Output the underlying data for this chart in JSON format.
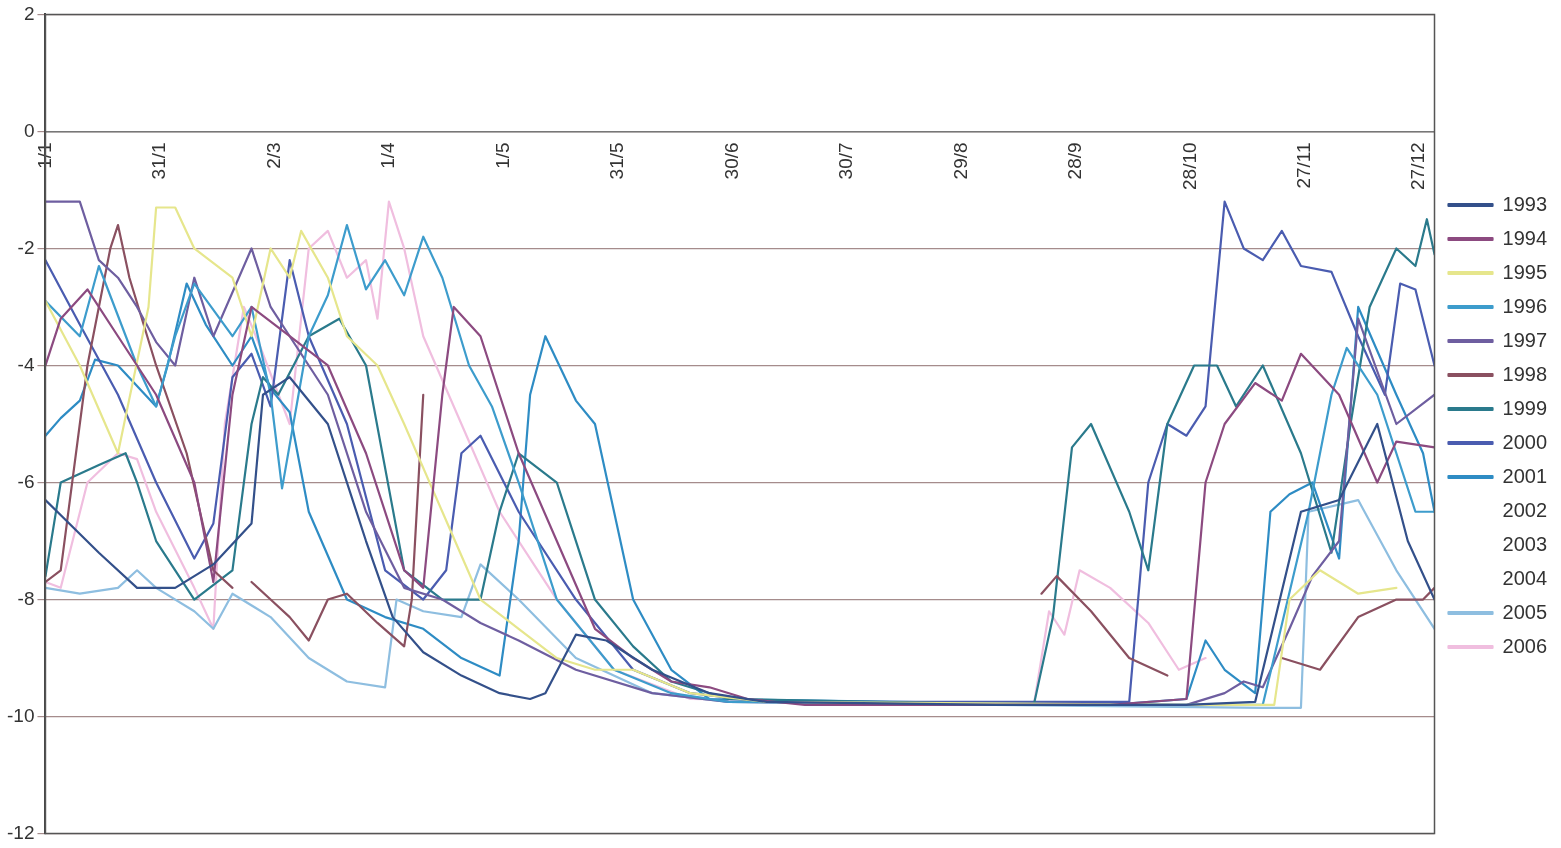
{
  "chart_data": {
    "type": "line",
    "xlim": [
      "--01-01",
      "--12-31"
    ],
    "ylim": [
      -12,
      2
    ],
    "xticks": [
      {
        "value": "--01-01",
        "label": "1/1"
      },
      {
        "value": "--01-31",
        "label": "31/1"
      },
      {
        "value": "--03-02",
        "label": "2/3"
      },
      {
        "value": "--04-01",
        "label": "1/4"
      },
      {
        "value": "--05-01",
        "label": "1/5"
      },
      {
        "value": "--05-31",
        "label": "31/5"
      },
      {
        "value": "--06-30",
        "label": "30/6"
      },
      {
        "value": "--07-30",
        "label": "30/7"
      },
      {
        "value": "--08-29",
        "label": "29/8"
      },
      {
        "value": "--09-28",
        "label": "28/9"
      },
      {
        "value": "--10-28",
        "label": "28/10"
      },
      {
        "value": "--11-27",
        "label": "27/11"
      },
      {
        "value": "--12-27",
        "label": "27/12"
      }
    ],
    "yticks": [
      -12,
      -10,
      -8,
      -6,
      -4,
      -2,
      0,
      2
    ],
    "grid": "y",
    "legend": "right",
    "marker": "none",
    "line_style": "solid",
    "series": [
      {
        "name": "1993",
        "color": "#33508a",
        "x": [
          "--01-01",
          "--01-15",
          "--01-25",
          "--02-04",
          "--02-14",
          "--02-24",
          "--02-27",
          "--03-06",
          "--03-16",
          "--03-26",
          "--04-02",
          "--04-10",
          "--04-20",
          "--04-30",
          "--05-08",
          "--05-12",
          "--05-20",
          "--05-28",
          "--06-09",
          "--06-24",
          "--07-09",
          "--09-07",
          "--10-27",
          "--11-14",
          "--11-26",
          "--12-06",
          "--12-16",
          "--12-24",
          "--12-31"
        ],
        "values": [
          -6.3,
          -7.2,
          -7.8,
          -7.8,
          -7.4,
          -6.7,
          -4.5,
          -4.2,
          -5,
          -7,
          -8.3,
          -8.9,
          -9.3,
          -9.6,
          -9.7,
          -9.6,
          -8.6,
          -8.7,
          -9.2,
          -9.6,
          -9.75,
          -9.8,
          -9.8,
          -9.75,
          -6.5,
          -6.3,
          -5,
          -7,
          -8
        ]
      },
      {
        "name": "1994",
        "color": "#8c4a80",
        "x": [
          "--01-01",
          "--01-05",
          "--01-12",
          "--01-20",
          "--01-30",
          "--02-09",
          "--02-14",
          "--02-19",
          "--02-24",
          "--03-06",
          "--03-16",
          "--03-26",
          "--04-05",
          "--04-10",
          "--04-15",
          "--04-18",
          "--04-25",
          "--05-05",
          "--05-15",
          "--05-25",
          "--06-04",
          "--06-14",
          "--06-24",
          "--07-04",
          "--07-19",
          "--10-07",
          "--10-27",
          "--11-01",
          "--11-06",
          "--11-14",
          "--11-21",
          "--11-26",
          "--12-06",
          "--12-16",
          "--12-21",
          "--12-31"
        ],
        "values": [
          -4,
          -3.2,
          -2.7,
          -3.5,
          -4.5,
          -6,
          -7.7,
          -4.5,
          -3,
          -3.5,
          -4,
          -5.5,
          -7.5,
          -7.8,
          -4.5,
          -3,
          -3.5,
          -5.5,
          -7,
          -8.5,
          -9,
          -9.4,
          -9.5,
          -9.7,
          -9.8,
          -9.8,
          -9.7,
          -6,
          -5,
          -4.3,
          -4.6,
          -3.8,
          -4.5,
          -6,
          -5.3,
          -5.4
        ]
      },
      {
        "name": "1995",
        "color": "#e6e68c",
        "x": [
          "--01-01",
          "--01-10",
          "--01-20",
          "--01-28",
          "--01-30",
          "--02-04",
          "--02-09",
          "--02-19",
          "--02-24",
          "--03-01",
          "--03-06",
          "--03-09",
          "--03-16",
          "--03-21",
          "--03-29",
          "--04-05",
          "--04-15",
          "--04-25",
          "--05-05",
          "--05-15",
          "--05-25",
          "--06-04",
          "--06-19",
          "--07-09",
          "--10-27",
          "--11-19",
          "--11-23",
          "--12-01",
          "--12-11",
          "--12-21"
        ],
        "values": [
          -2.9,
          -4,
          -5.5,
          -3,
          -1.3,
          -1.3,
          -2,
          -2.5,
          -3.5,
          -2,
          -2.5,
          -1.7,
          -2.5,
          -3.5,
          -4,
          -5,
          -6.5,
          -8,
          -8.5,
          -9,
          -9.2,
          -9.2,
          -9.6,
          -9.75,
          -9.8,
          -9.8,
          -8,
          -7.5,
          -7.9,
          -7.8
        ]
      },
      {
        "name": "1996",
        "color": "#3d9ccc",
        "x": [
          "--01-01",
          "--01-10",
          "--01-15",
          "--01-25",
          "--01-30",
          "--02-04",
          "--02-09",
          "--02-19",
          "--02-24",
          "--03-01",
          "--03-04",
          "--03-11",
          "--03-16",
          "--03-21",
          "--03-26",
          "--03-31",
          "--04-05",
          "--04-10",
          "--04-15",
          "--04-22",
          "--04-28",
          "--05-05",
          "--05-15",
          "--05-30",
          "--06-14",
          "--06-29",
          "--10-27",
          "--11-16",
          "--11-28",
          "--12-04",
          "--12-08",
          "--12-16",
          "--12-26",
          "--12-31"
        ],
        "values": [
          -2.9,
          -3.5,
          -2.3,
          -4,
          -4.7,
          -3.5,
          -2.6,
          -3.5,
          -3,
          -4.5,
          -6.1,
          -3.5,
          -2.8,
          -1.6,
          -2.7,
          -2.2,
          -2.8,
          -1.8,
          -2.5,
          -4,
          -4.7,
          -6,
          -8,
          -9.2,
          -9.6,
          -9.75,
          -9.8,
          -9.8,
          -6.5,
          -4.5,
          -3.7,
          -4.5,
          -6.5,
          -6.5
        ]
      },
      {
        "name": "1997",
        "color": "#6e5ea0",
        "x": [
          "--01-01",
          "--01-10",
          "--01-15",
          "--01-20",
          "--01-25",
          "--01-30",
          "--02-04",
          "--02-09",
          "--02-14",
          "--02-24",
          "--03-01",
          "--03-06",
          "--03-16",
          "--03-26",
          "--04-05",
          "--04-15",
          "--04-25",
          "--05-05",
          "--05-20",
          "--06-09",
          "--06-29",
          "--10-27",
          "--11-06",
          "--11-11",
          "--11-16",
          "--11-23",
          "--11-29",
          "--12-06",
          "--12-11",
          "--12-21",
          "--12-31"
        ],
        "values": [
          -1.2,
          -1.2,
          -2.2,
          -2.5,
          -3,
          -3.6,
          -4,
          -2.5,
          -3.5,
          -2,
          -3,
          -3.5,
          -4.5,
          -6.5,
          -7.8,
          -8,
          -8.4,
          -8.7,
          -9.2,
          -9.6,
          -9.75,
          -9.8,
          -9.6,
          -9.4,
          -9.5,
          -8.5,
          -7.6,
          -7,
          -3.2,
          -5,
          -4.5
        ]
      },
      {
        "name": "1998",
        "color": "#8a5060",
        "x": [
          "--01-01",
          "--01-05",
          "--01-12",
          "--01-18",
          "--01-20",
          "--01-23",
          "--01-30",
          "--02-07",
          "--02-14",
          "--02-19",
          "--02-21",
          "--02-24",
          "--03-01",
          "--03-06",
          "--03-11",
          "--03-16",
          "--03-21",
          "--03-29",
          "--04-05",
          "--04-07",
          "--04-10",
          "--04-13",
          "--09-19",
          "--09-23",
          "--10-02",
          "--10-12",
          "--10-22",
          "--10-27",
          "--11-21",
          "--12-01",
          "--12-11",
          "--12-21",
          "--12-28",
          "--12-31"
        ],
        "values": [
          -7.7,
          -7.5,
          -4,
          -2,
          -1.6,
          -2.5,
          -4,
          -5.5,
          -7.5,
          -7.8,
          null,
          -7.7,
          -8,
          -8.3,
          -8.7,
          -8,
          -7.9,
          -8.4,
          -8.8,
          -8,
          -4.5,
          null,
          -7.9,
          -7.6,
          -8.2,
          -9,
          -9.3,
          null,
          -9,
          -9.2,
          -8.3,
          -8,
          -8,
          -7.8
        ]
      },
      {
        "name": "1999",
        "color": "#2a7a8c",
        "x": [
          "--01-01",
          "--01-05",
          "--01-15",
          "--01-22",
          "--01-25",
          "--01-30",
          "--02-09",
          "--02-19",
          "--02-24",
          "--02-27",
          "--03-03",
          "--03-11",
          "--03-19",
          "--03-26",
          "--04-05",
          "--04-15",
          "--04-25",
          "--04-30",
          "--05-05",
          "--05-15",
          "--05-25",
          "--06-04",
          "--06-14",
          "--06-29",
          "--09-17",
          "--09-22",
          "--09-27",
          "--10-02",
          "--10-12",
          "--10-17",
          "--10-22",
          "--10-29",
          "--11-04",
          "--11-09",
          "--11-16",
          "--11-26",
          "--12-04",
          "--12-09",
          "--12-14",
          "--12-21",
          "--12-26",
          "--12-29",
          "--12-31"
        ],
        "values": [
          -7.6,
          -6,
          -5.7,
          -5.5,
          -6,
          -7,
          -8,
          -7.5,
          -5,
          -4.2,
          -4.5,
          -3.5,
          -3.2,
          -4,
          -7.5,
          -8,
          -8,
          -6.5,
          -5.5,
          -6,
          -8,
          -8.8,
          -9.4,
          -9.7,
          -9.8,
          -8.3,
          -5.4,
          -5,
          -6.5,
          -7.5,
          -5,
          -4,
          -4,
          -4.7,
          -4,
          -5.5,
          -7.2,
          -5,
          -3,
          -2,
          -2.3,
          -1.5,
          -2.1
        ]
      },
      {
        "name": "2000",
        "color": "#4a5cb0",
        "x": [
          "--01-01",
          "--01-10",
          "--01-20",
          "--01-30",
          "--02-09",
          "--02-14",
          "--02-19",
          "--02-24",
          "--03-01",
          "--03-06",
          "--03-11",
          "--03-21",
          "--03-31",
          "--04-10",
          "--04-16",
          "--04-20",
          "--04-25",
          "--05-05",
          "--05-20",
          "--06-04",
          "--06-19",
          "--07-09",
          "--10-12",
          "--10-17",
          "--10-22",
          "--10-27",
          "--11-01",
          "--11-06",
          "--11-11",
          "--11-16",
          "--11-21",
          "--11-26",
          "--12-04",
          "--12-11",
          "--12-18",
          "--12-22",
          "--12-26",
          "--12-31"
        ],
        "values": [
          -2.2,
          -3.3,
          -4.5,
          -6,
          -7.3,
          -6.7,
          -4.2,
          -3.8,
          -4.7,
          -2.2,
          -3.5,
          -5,
          -7.5,
          -8,
          -7.5,
          -5.5,
          -5.2,
          -6.5,
          -8,
          -9.2,
          -9.6,
          -9.75,
          -9.75,
          -6,
          -5,
          -5.2,
          -4.7,
          -1.2,
          -2,
          -2.2,
          -1.7,
          -2.3,
          -2.4,
          -3.5,
          -4.5,
          -2.6,
          -2.7,
          -4
        ]
      },
      {
        "name": "2001",
        "color": "#2e8cc4",
        "x": [
          "--01-01",
          "--01-05",
          "--01-10",
          "--01-14",
          "--01-20",
          "--01-30",
          "--02-02",
          "--02-07",
          "--02-12",
          "--02-19",
          "--02-24",
          "--03-01",
          "--03-06",
          "--03-11",
          "--03-21",
          "--03-31",
          "--04-10",
          "--04-20",
          "--04-30",
          "--05-05",
          "--05-08",
          "--05-12",
          "--05-20",
          "--05-25",
          "--06-04",
          "--06-14",
          "--06-24",
          "--10-07",
          "--10-27",
          "--11-01",
          "--11-06",
          "--11-14",
          "--11-18",
          "--11-23",
          "--11-29",
          "--12-06",
          "--12-11",
          "--12-21",
          "--12-28",
          "--12-31"
        ],
        "values": [
          -5.2,
          -4.9,
          -4.6,
          -3.9,
          -4,
          -4.7,
          -4,
          -2.6,
          -3.3,
          -4,
          -3.5,
          -4.4,
          -4.8,
          -6.5,
          -8,
          -8.3,
          -8.5,
          -9,
          -9.3,
          -7,
          -4.5,
          -3.5,
          -4.6,
          -5,
          -8,
          -9.2,
          -9.7,
          -9.8,
          -9.7,
          -8.7,
          -9.2,
          -9.6,
          -6.5,
          -6.2,
          -6,
          -7.3,
          -3,
          -4.5,
          -5.5,
          -6.5
        ]
      },
      {
        "name": "2002"
      },
      {
        "name": "2003"
      },
      {
        "name": "2004"
      },
      {
        "name": "2005",
        "color": "#8ebee0",
        "x": [
          "--01-01",
          "--01-10",
          "--01-20",
          "--01-25",
          "--01-30",
          "--02-09",
          "--02-14",
          "--02-19",
          "--03-01",
          "--03-11",
          "--03-21",
          "--03-31",
          "--04-03",
          "--04-10",
          "--04-20",
          "--04-25",
          "--05-05",
          "--05-20",
          "--06-09",
          "--06-29",
          "--11-16",
          "--11-26",
          "--11-28",
          "--12-11",
          "--12-21",
          "--12-31"
        ],
        "values": [
          -7.8,
          -7.9,
          -7.8,
          -7.5,
          -7.8,
          -8.2,
          -8.5,
          -7.9,
          -8.3,
          -9,
          -9.4,
          -9.5,
          -8,
          -8.2,
          -8.3,
          -7.4,
          -8,
          -9,
          -9.6,
          -9.75,
          -9.85,
          -9.85,
          -6.5,
          -6.3,
          -7.5,
          -8.5
        ]
      },
      {
        "name": "2006",
        "color": "#f0bedf",
        "x": [
          "--01-01",
          "--01-05",
          "--01-12",
          "--01-20",
          "--01-25",
          "--01-30",
          "--02-09",
          "--02-14",
          "--02-17",
          "--02-22",
          "--02-27",
          "--03-06",
          "--03-11",
          "--03-16",
          "--03-21",
          "--03-26",
          "--03-29",
          "--04-01",
          "--04-05",
          "--04-10",
          "--04-20",
          "--04-30",
          "--05-15",
          "--05-30",
          "--06-19",
          "--09-17",
          "--09-21",
          "--09-25",
          "--09-29",
          "--10-07",
          "--10-17",
          "--10-25",
          "--11-01"
        ],
        "values": [
          -7.7,
          -7.8,
          -6,
          -5.5,
          -5.6,
          -6.5,
          -7.8,
          -8.5,
          -5,
          -3,
          -3.8,
          -5,
          -2,
          -1.7,
          -2.5,
          -2.2,
          -3.2,
          -1.2,
          -2,
          -3.5,
          -5,
          -6.5,
          -8,
          -9.2,
          -9.7,
          -9.8,
          -8.2,
          -8.6,
          -7.5,
          -7.8,
          -8.4,
          -9.2,
          -9
        ]
      }
    ]
  }
}
